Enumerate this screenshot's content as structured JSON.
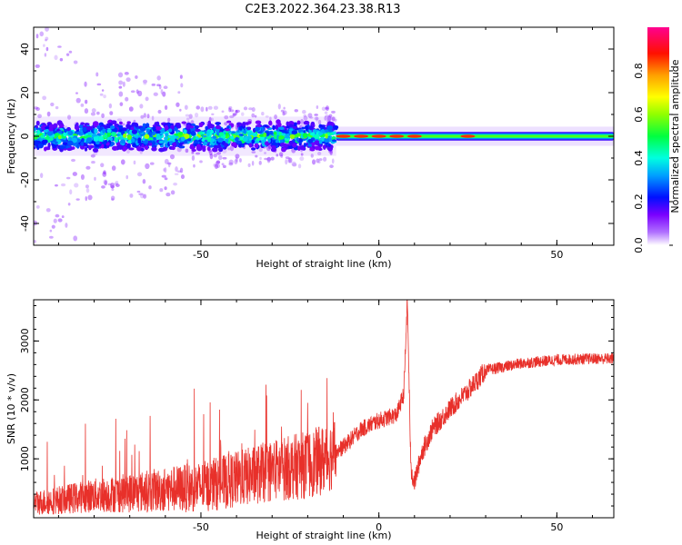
{
  "title": "C2E3.2022.364.23.38.R13",
  "colors": {
    "snr_line": "#e8302a",
    "frame": "#000000"
  },
  "chart_data": [
    {
      "type": "heatmap",
      "name": "spectrogram",
      "xlabel": "Height of straight line (km)",
      "ylabel": "Frequency (Hz)",
      "xlim": [
        -97,
        66
      ],
      "ylim": [
        -50,
        50
      ],
      "x_ticks": [
        -50,
        0,
        50
      ],
      "y_ticks": [
        -40,
        -20,
        0,
        20,
        40
      ],
      "colorbar": {
        "label": "Normalized spectral amplitude",
        "range": [
          0,
          1
        ],
        "ticks": [
          0.0,
          0.2,
          0.4,
          0.6,
          0.8
        ],
        "tick_labels": [
          "0.0",
          "0.2",
          "0.4",
          "0.6",
          "0.8"
        ],
        "colormap": [
          "#ffffff",
          "#7a00ff",
          "#0000ff",
          "#00e5ff",
          "#00ff60",
          "#b0ff00",
          "#ffff00",
          "#ff8000",
          "#ff0000",
          "#ff00a0"
        ]
      },
      "band": {
        "center_hz": 0,
        "noisy_region_x": [
          -97,
          -12
        ],
        "narrow_region_x": [
          -12,
          66
        ],
        "noisy_half_width_hz": 5,
        "narrow_half_width_hz": 2,
        "peak_amplitude_x": [
          -10,
          -5,
          0,
          5,
          10,
          25
        ]
      }
    },
    {
      "type": "line",
      "name": "snr",
      "xlabel": "Height of straight line (km)",
      "ylabel": "SNR (10 * v/v)",
      "xlim": [
        -97,
        66
      ],
      "ylim": [
        0,
        3700
      ],
      "x_ticks": [
        -50,
        0,
        50
      ],
      "y_ticks": [
        1000,
        2000,
        3000
      ],
      "series": [
        {
          "x": [
            -97,
            -90,
            -80,
            -70,
            -60,
            -50,
            -40,
            -30,
            -20,
            -15,
            -10,
            -5,
            0,
            5,
            7,
            8,
            9,
            10,
            12,
            15,
            20,
            25,
            30,
            40,
            50,
            60,
            66
          ],
          "values": [
            250,
            300,
            380,
            420,
            480,
            520,
            650,
            800,
            900,
            1000,
            1200,
            1500,
            1650,
            1750,
            2100,
            3700,
            800,
            600,
            1100,
            1500,
            1850,
            2150,
            2500,
            2620,
            2680,
            2700,
            2700
          ]
        }
      ]
    }
  ]
}
